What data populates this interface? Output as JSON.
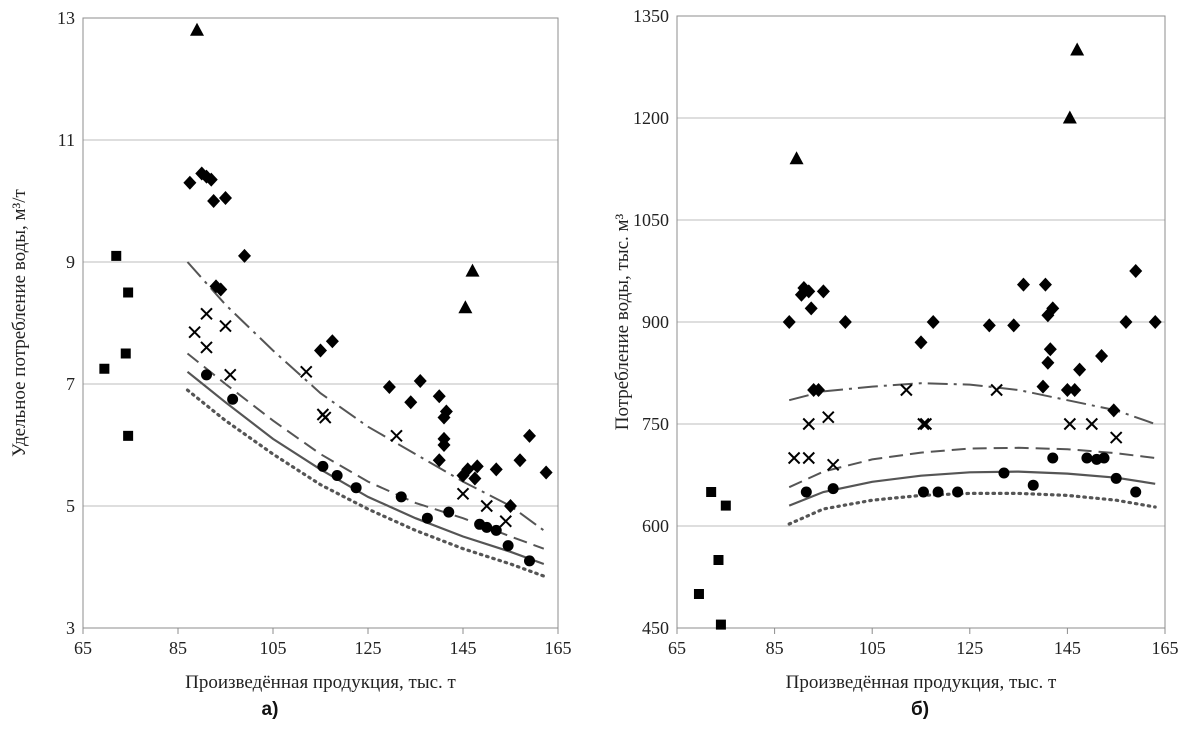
{
  "chart_data": [
    {
      "type": "scatter",
      "panel_label": "а)",
      "xlabel": "Произведённая продукция, тыс. т",
      "ylabel": "Удельное потребление воды, м³/т",
      "xlim": [
        65,
        165
      ],
      "ylim": [
        3,
        13
      ],
      "xticks": [
        "65",
        "85",
        "105",
        "125",
        "145",
        "165"
      ],
      "yticks": [
        "3",
        "5",
        "7",
        "9",
        "11",
        "13"
      ],
      "grid": "horizontal",
      "legend": "none",
      "scatter_series": [
        {
          "marker": "square",
          "points": [
            [
              69.5,
              7.25
            ],
            [
              72,
              9.1
            ],
            [
              74,
              7.5
            ],
            [
              74.5,
              8.5
            ],
            [
              74.5,
              6.15
            ]
          ]
        },
        {
          "marker": "triangle",
          "points": [
            [
              89,
              12.8
            ],
            [
              145.5,
              8.25
            ],
            [
              147,
              8.85
            ]
          ]
        },
        {
          "marker": "diamond",
          "points": [
            [
              87.5,
              10.3
            ],
            [
              90,
              10.45
            ],
            [
              91,
              10.4
            ],
            [
              92,
              10.35
            ],
            [
              92.5,
              10.0
            ],
            [
              93,
              8.6
            ],
            [
              94,
              8.55
            ],
            [
              95,
              10.05
            ],
            [
              99,
              9.1
            ],
            [
              115,
              7.55
            ],
            [
              117.5,
              7.7
            ],
            [
              129.5,
              6.95
            ],
            [
              134,
              6.7
            ],
            [
              136,
              7.05
            ],
            [
              140,
              6.8
            ],
            [
              140,
              5.75
            ],
            [
              141,
              6.0
            ],
            [
              141,
              6.1
            ],
            [
              141,
              6.45
            ],
            [
              141.5,
              6.55
            ],
            [
              145,
              5.5
            ],
            [
              146,
              5.6
            ],
            [
              147.5,
              5.45
            ],
            [
              148,
              5.65
            ],
            [
              152,
              5.6
            ],
            [
              155,
              5.0
            ],
            [
              157,
              5.75
            ],
            [
              159,
              6.15
            ],
            [
              162.5,
              5.55
            ]
          ]
        },
        {
          "marker": "x",
          "points": [
            [
              88.5,
              7.85
            ],
            [
              91,
              8.15
            ],
            [
              91,
              7.6
            ],
            [
              95,
              7.95
            ],
            [
              96,
              7.15
            ],
            [
              112,
              7.2
            ],
            [
              115.5,
              6.5
            ],
            [
              116,
              6.45
            ],
            [
              131,
              6.15
            ],
            [
              145,
              5.2
            ],
            [
              150,
              5.0
            ],
            [
              154,
              4.75
            ]
          ]
        },
        {
          "marker": "circle",
          "points": [
            [
              91,
              7.15
            ],
            [
              96.5,
              6.75
            ],
            [
              115.5,
              5.65
            ],
            [
              118.5,
              5.5
            ],
            [
              122.5,
              5.3
            ],
            [
              132,
              5.15
            ],
            [
              137.5,
              4.8
            ],
            [
              142,
              4.9
            ],
            [
              148.5,
              4.7
            ],
            [
              150,
              4.65
            ],
            [
              152,
              4.6
            ],
            [
              154.5,
              4.35
            ],
            [
              159,
              4.1
            ]
          ]
        }
      ],
      "line_series": [
        {
          "style": "dash-dot",
          "x": [
            87,
            95,
            105,
            115,
            125,
            135,
            145,
            155,
            162
          ],
          "y": [
            9.0,
            8.3,
            7.55,
            6.85,
            6.3,
            5.85,
            5.4,
            5.0,
            4.6
          ]
        },
        {
          "style": "dashed",
          "x": [
            87,
            95,
            105,
            115,
            125,
            135,
            145,
            155,
            162
          ],
          "y": [
            7.5,
            7.0,
            6.4,
            5.85,
            5.4,
            5.05,
            4.8,
            4.5,
            4.3
          ]
        },
        {
          "style": "solid",
          "x": [
            87,
            95,
            105,
            115,
            125,
            135,
            145,
            155,
            162
          ],
          "y": [
            7.2,
            6.7,
            6.1,
            5.6,
            5.15,
            4.8,
            4.5,
            4.25,
            4.05
          ]
        },
        {
          "style": "dotted",
          "x": [
            87,
            95,
            105,
            115,
            125,
            135,
            145,
            155,
            162
          ],
          "y": [
            6.9,
            6.4,
            5.85,
            5.35,
            4.95,
            4.6,
            4.3,
            4.05,
            3.85
          ]
        }
      ]
    },
    {
      "type": "scatter",
      "panel_label": "б)",
      "xlabel": "Произведённая продукция, тыс. т",
      "ylabel": "Потребление воды, тыс. м³",
      "xlim": [
        65,
        165
      ],
      "ylim": [
        450,
        1350
      ],
      "xticks": [
        "65",
        "85",
        "105",
        "125",
        "145",
        "165"
      ],
      "yticks": [
        "450",
        "600",
        "750",
        "900",
        "1050",
        "1200",
        "1350"
      ],
      "grid": "horizontal",
      "legend": "none",
      "scatter_series": [
        {
          "marker": "square",
          "points": [
            [
              69.5,
              500
            ],
            [
              72,
              650
            ],
            [
              73.5,
              550
            ],
            [
              74,
              455
            ],
            [
              75,
              630
            ]
          ]
        },
        {
          "marker": "triangle",
          "points": [
            [
              89.5,
              1140
            ],
            [
              145.5,
              1200
            ],
            [
              147,
              1300
            ]
          ]
        },
        {
          "marker": "diamond",
          "points": [
            [
              88,
              900
            ],
            [
              90.5,
              940
            ],
            [
              91,
              950
            ],
            [
              92,
              945
            ],
            [
              92.5,
              920
            ],
            [
              93,
              800
            ],
            [
              94,
              800
            ],
            [
              95,
              945
            ],
            [
              99.5,
              900
            ],
            [
              115,
              870
            ],
            [
              117.5,
              900
            ],
            [
              129,
              895
            ],
            [
              134,
              895
            ],
            [
              136,
              955
            ],
            [
              140,
              805
            ],
            [
              140.5,
              955
            ],
            [
              141,
              910
            ],
            [
              141,
              840
            ],
            [
              141.5,
              860
            ],
            [
              142,
              920
            ],
            [
              145,
              800
            ],
            [
              146.5,
              800
            ],
            [
              147.5,
              830
            ],
            [
              152,
              850
            ],
            [
              154.5,
              770
            ],
            [
              157,
              900
            ],
            [
              159,
              975
            ],
            [
              163,
              900
            ]
          ]
        },
        {
          "marker": "x",
          "points": [
            [
              89,
              700
            ],
            [
              92,
              700
            ],
            [
              92,
              750
            ],
            [
              96,
              760
            ],
            [
              97,
              690
            ],
            [
              112,
              800
            ],
            [
              115.5,
              750
            ],
            [
              116,
              750
            ],
            [
              130.5,
              800
            ],
            [
              145.5,
              750
            ],
            [
              150,
              750
            ],
            [
              155,
              730
            ]
          ]
        },
        {
          "marker": "circle",
          "points": [
            [
              91.5,
              650
            ],
            [
              97,
              655
            ],
            [
              115.5,
              650
            ],
            [
              118.5,
              650
            ],
            [
              122.5,
              650
            ],
            [
              132,
              678
            ],
            [
              138,
              660
            ],
            [
              142,
              700
            ],
            [
              149,
              700
            ],
            [
              151,
              698
            ],
            [
              152.5,
              700
            ],
            [
              155,
              670
            ],
            [
              159,
              650
            ]
          ]
        }
      ],
      "line_series": [
        {
          "style": "dash-dot",
          "x": [
            88,
            95,
            105,
            115,
            125,
            135,
            145,
            155,
            163
          ],
          "y": [
            785,
            798,
            805,
            810,
            808,
            800,
            785,
            770,
            750
          ]
        },
        {
          "style": "dashed",
          "x": [
            88,
            95,
            105,
            115,
            125,
            135,
            145,
            155,
            163
          ],
          "y": [
            657,
            680,
            698,
            708,
            714,
            715,
            713,
            707,
            700
          ]
        },
        {
          "style": "solid",
          "x": [
            88,
            95,
            105,
            115,
            125,
            135,
            145,
            155,
            163
          ],
          "y": [
            630,
            650,
            665,
            674,
            679,
            680,
            677,
            671,
            662
          ]
        },
        {
          "style": "dotted",
          "x": [
            88,
            95,
            105,
            115,
            125,
            135,
            145,
            155,
            163
          ],
          "y": [
            603,
            625,
            638,
            645,
            648,
            648,
            645,
            638,
            628
          ]
        }
      ]
    }
  ]
}
